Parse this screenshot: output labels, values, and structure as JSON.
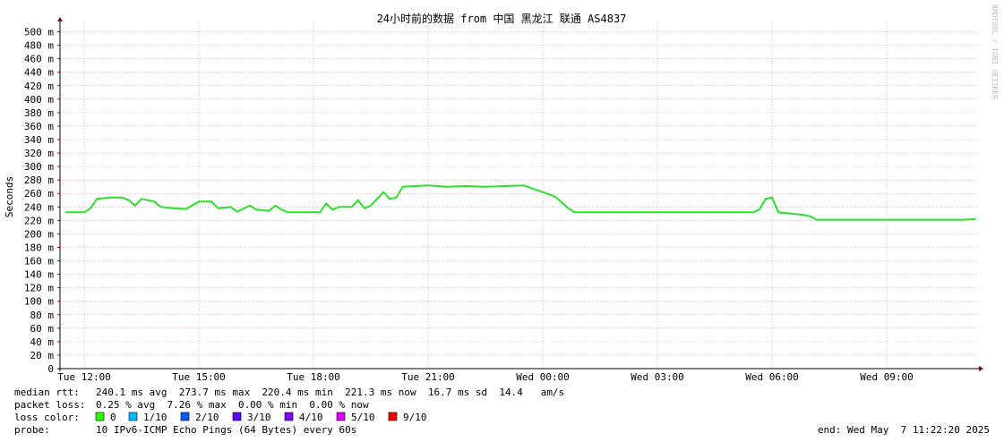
{
  "chart_data": {
    "type": "line",
    "title": "24小时前的数据 from 中国 黑龙江 联通 AS4837",
    "y_label": "Seconds",
    "watermark": "RRDTOOL / TOBI OETIKER",
    "x": [
      "Tue 11:30",
      "Tue 12:00",
      "Tue 12:10",
      "Tue 12:20",
      "Tue 12:40",
      "Tue 13:00",
      "Tue 13:10",
      "Tue 13:20",
      "Tue 13:30",
      "Tue 13:50",
      "Tue 14:00",
      "Tue 14:20",
      "Tue 14:40",
      "Tue 15:00",
      "Tue 15:20",
      "Tue 15:30",
      "Tue 15:50",
      "Tue 16:00",
      "Tue 16:20",
      "Tue 16:30",
      "Tue 16:50",
      "Tue 17:00",
      "Tue 17:10",
      "Tue 17:20",
      "Tue 18:10",
      "Tue 18:20",
      "Tue 18:30",
      "Tue 18:40",
      "Tue 19:00",
      "Tue 19:10",
      "Tue 19:20",
      "Tue 19:30",
      "Tue 19:50",
      "Tue 20:00",
      "Tue 20:10",
      "Tue 20:20",
      "Tue 21:00",
      "Tue 21:30",
      "Tue 22:00",
      "Tue 22:30",
      "Tue 23:00",
      "Tue 23:30",
      "Wed 00:00",
      "Wed 00:20",
      "Wed 00:40",
      "Wed 00:50",
      "Wed 05:30",
      "Wed 05:40",
      "Wed 05:50",
      "Wed 06:00",
      "Wed 06:10",
      "Wed 06:30",
      "Wed 06:50",
      "Wed 07:00",
      "Wed 07:10",
      "Wed 11:00",
      "Wed 11:20"
    ],
    "series": [
      {
        "name": "median rtt",
        "color": "#2fdc2f",
        "values": [
          0.232,
          0.232,
          0.238,
          0.252,
          0.254,
          0.254,
          0.25,
          0.242,
          0.252,
          0.248,
          0.24,
          0.238,
          0.237,
          0.248,
          0.248,
          0.238,
          0.24,
          0.233,
          0.242,
          0.236,
          0.234,
          0.242,
          0.236,
          0.232,
          0.232,
          0.245,
          0.236,
          0.24,
          0.24,
          0.25,
          0.238,
          0.242,
          0.262,
          0.252,
          0.254,
          0.27,
          0.272,
          0.27,
          0.271,
          0.27,
          0.271,
          0.272,
          0.262,
          0.255,
          0.238,
          0.232,
          0.232,
          0.236,
          0.252,
          0.254,
          0.232,
          0.23,
          0.228,
          0.226,
          0.221,
          0.221,
          0.222
        ]
      }
    ],
    "xlim": [
      "Tue 11:22",
      "Wed 11:22"
    ],
    "xticks": [
      "Tue 12:00",
      "Tue 15:00",
      "Tue 18:00",
      "Tue 21:00",
      "Wed 00:00",
      "Wed 03:00",
      "Wed 06:00",
      "Wed 09:00"
    ],
    "ylim": [
      0,
      0.51
    ],
    "yticks": [
      0,
      {
        "value": 0.02,
        "label": "20 m"
      },
      {
        "value": 0.04,
        "label": "40 m"
      },
      {
        "value": 0.06,
        "label": "60 m"
      },
      {
        "value": 0.08,
        "label": "80 m"
      },
      {
        "value": 0.1,
        "label": "100 m"
      },
      {
        "value": 0.12,
        "label": "120 m"
      },
      {
        "value": 0.14,
        "label": "140 m"
      },
      {
        "value": 0.16,
        "label": "160 m"
      },
      {
        "value": 0.18,
        "label": "180 m"
      },
      {
        "value": 0.2,
        "label": "200 m"
      },
      {
        "value": 0.22,
        "label": "220 m"
      },
      {
        "value": 0.24,
        "label": "240 m"
      },
      {
        "value": 0.26,
        "label": "260 m"
      },
      {
        "value": 0.28,
        "label": "280 m"
      },
      {
        "value": 0.3,
        "label": "300 m"
      },
      {
        "value": 0.32,
        "label": "320 m"
      },
      {
        "value": 0.34,
        "label": "340 m"
      },
      {
        "value": 0.36,
        "label": "360 m"
      },
      {
        "value": 0.38,
        "label": "380 m"
      },
      {
        "value": 0.4,
        "label": "400 m"
      },
      {
        "value": 0.42,
        "label": "420 m"
      },
      {
        "value": 0.44,
        "label": "440 m"
      },
      {
        "value": 0.46,
        "label": "460 m"
      },
      {
        "value": 0.48,
        "label": "480 m"
      },
      {
        "value": 0.5,
        "label": "500 m"
      }
    ],
    "grid": true
  },
  "median_rtt": {
    "label": "median rtt:",
    "text": "240.1 ms avg  273.7 ms max  220.4 ms min  221.3 ms now  16.7 ms sd  14.4   am/s"
  },
  "packet_loss": {
    "label": "packet loss:",
    "text": "0.25 % avg  7.26 % max  0.00 % min  0.00 % now"
  },
  "loss_color": {
    "label": "loss color:",
    "items": [
      {
        "name": "0",
        "color": "#26ff00"
      },
      {
        "name": "1/10",
        "color": "#00b8ff"
      },
      {
        "name": "2/10",
        "color": "#0059ff"
      },
      {
        "name": "3/10",
        "color": "#5e00ff"
      },
      {
        "name": "4/10",
        "color": "#7e00ff"
      },
      {
        "name": "5/10",
        "color": "#dd00ff"
      },
      {
        "name": "9/10",
        "color": "#ff0000"
      }
    ]
  },
  "probe": {
    "label": "probe:",
    "text": "10 IPv6-ICMP Echo Pings (64 Bytes) every 60s"
  },
  "end": "end: Wed May  7 11:22:20 2025"
}
